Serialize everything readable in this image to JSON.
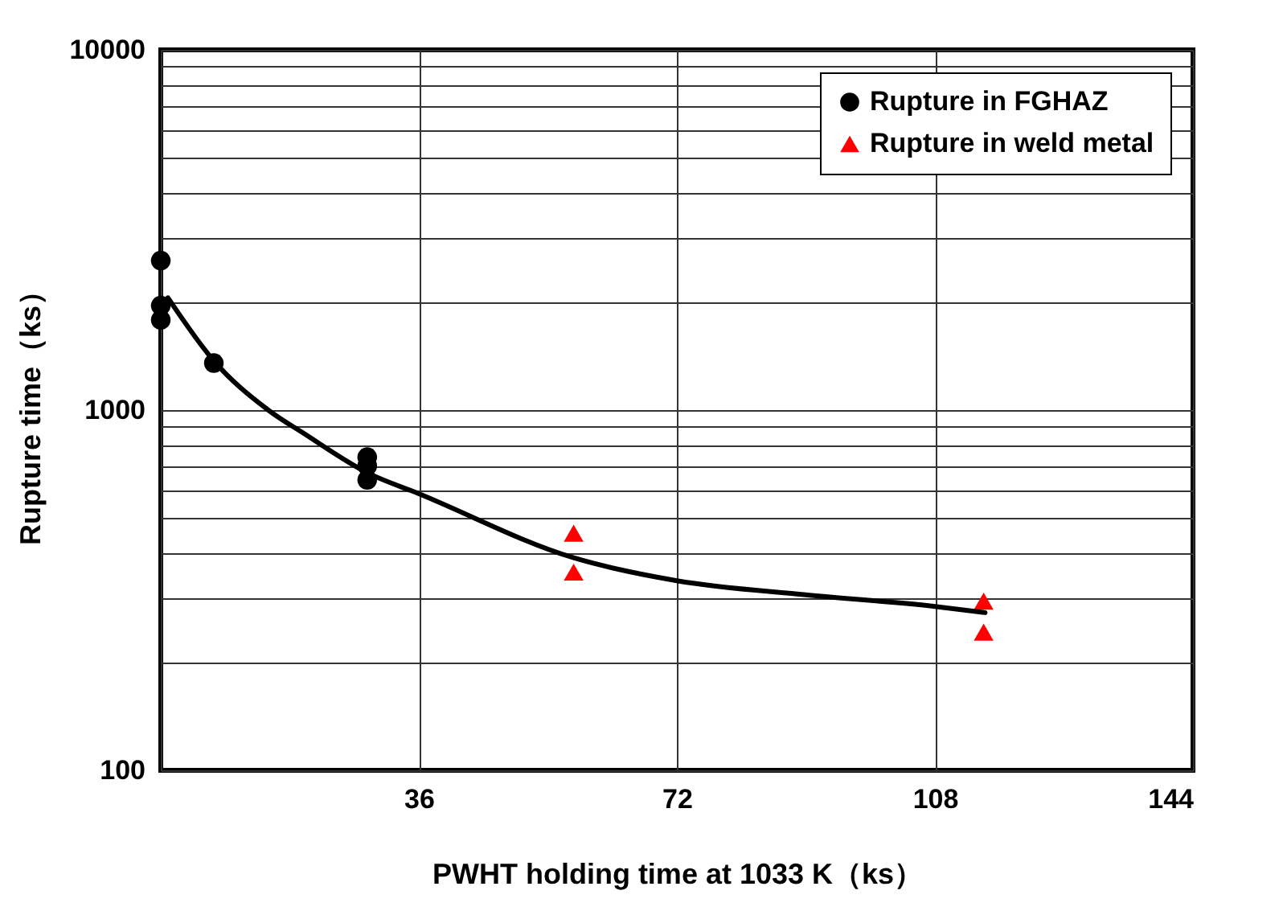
{
  "chart_data": {
    "type": "scatter",
    "xlabel": "PWHT holding time at 1033 K（ks）",
    "ylabel": "Rupture time（ks）",
    "xlim": [
      0,
      144
    ],
    "xticks": [
      {
        "value": 0,
        "label": null
      },
      36,
      72,
      108,
      144
    ],
    "ylim": [
      100,
      10000
    ],
    "yticks": [
      100,
      {
        "value": 200,
        "label": null
      },
      {
        "value": 300,
        "label": null
      },
      {
        "value": 400,
        "label": null
      },
      {
        "value": 500,
        "label": null
      },
      {
        "value": 600,
        "label": null
      },
      {
        "value": 700,
        "label": null
      },
      {
        "value": 800,
        "label": null
      },
      {
        "value": 900,
        "label": null
      },
      1000,
      {
        "value": 2000,
        "label": null
      },
      {
        "value": 3000,
        "label": null
      },
      {
        "value": 4000,
        "label": null
      },
      {
        "value": 5000,
        "label": null
      },
      {
        "value": 6000,
        "label": null
      },
      {
        "value": 7000,
        "label": null
      },
      {
        "value": 8000,
        "label": null
      },
      {
        "value": 9000,
        "label": null
      },
      10000
    ],
    "log": "y",
    "grid": true,
    "legend": "top right",
    "series": [
      {
        "name": "Rupture in FGHAZ",
        "color": "#000000",
        "marker": "circle",
        "x": [
          0,
          0,
          0,
          7.4,
          28.8,
          28.8,
          28.8
        ],
        "values": [
          2600,
          1950,
          1780,
          1350,
          740,
          700,
          640
        ]
      },
      {
        "name": "Rupture in weld metal",
        "color": "#ff0000",
        "marker": "triangle",
        "x": [
          57.6,
          57.6,
          114.8,
          114.8
        ],
        "values": [
          455,
          355,
          295,
          242
        ]
      },
      {
        "type": "line",
        "color": "#000000",
        "marker": "none",
        "x": [
          1,
          7.4,
          15,
          20,
          28.8,
          36,
          57.6,
          72,
          90,
          108,
          115
        ],
        "values": [
          2050,
          1370,
          1000,
          860,
          670,
          586,
          389,
          336,
          307,
          285,
          274
        ]
      }
    ]
  }
}
